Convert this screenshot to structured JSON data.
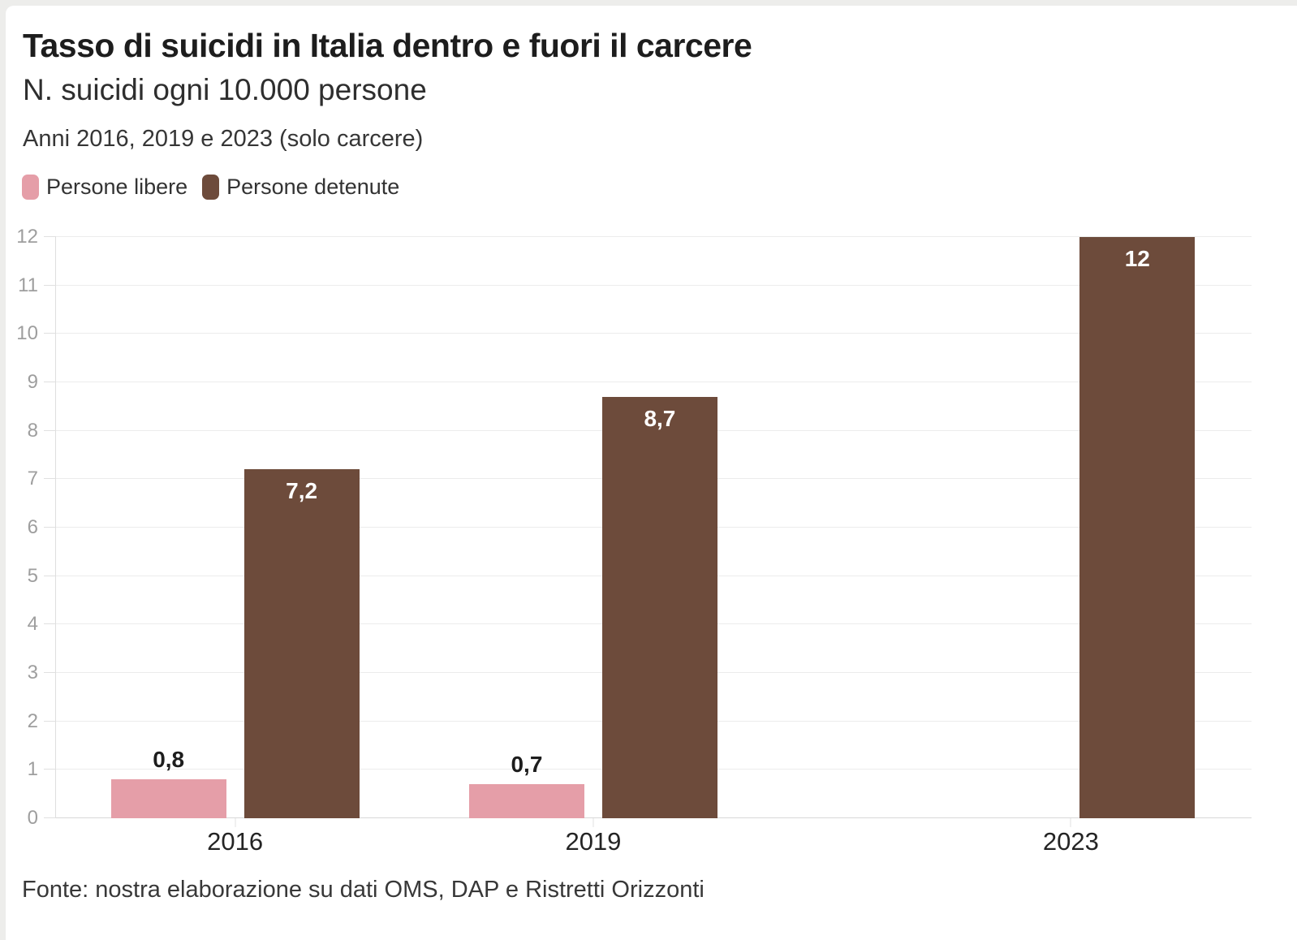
{
  "chart_data": {
    "type": "bar",
    "title": "Tasso di suicidi in Italia dentro e fuori il carcere",
    "subtitle": "N. suicidi ogni 10.000 persone",
    "note": "Anni 2016, 2019 e 2023 (solo carcere)",
    "source": "Fonte: nostra elaborazione su dati OMS, DAP e Ristretti Orizzonti",
    "categories": [
      "2016",
      "2019",
      "2023"
    ],
    "series": [
      {
        "name": "Persone libere",
        "color": "#E59EA8",
        "values": [
          0.8,
          0.7,
          null
        ],
        "value_labels": [
          "0,8",
          "0,7",
          null
        ],
        "label_position": "above",
        "label_color": "#1d1d1d"
      },
      {
        "name": "Persone detenute",
        "color": "#6D4B3B",
        "values": [
          7.2,
          8.7,
          12
        ],
        "value_labels": [
          "7,2",
          "8,7",
          "12"
        ],
        "label_position": "inside",
        "label_color": "#ffffff"
      }
    ],
    "ylim": [
      0,
      12
    ],
    "yticks": [
      0,
      1,
      2,
      3,
      4,
      5,
      6,
      7,
      8,
      9,
      10,
      11,
      12
    ],
    "xlabel": "",
    "ylabel": "",
    "grid": "horizontal",
    "legend_position": "top-left",
    "x_axis": {
      "type": "linear-years",
      "tick_centers_pct": [
        15,
        45,
        85
      ]
    }
  }
}
